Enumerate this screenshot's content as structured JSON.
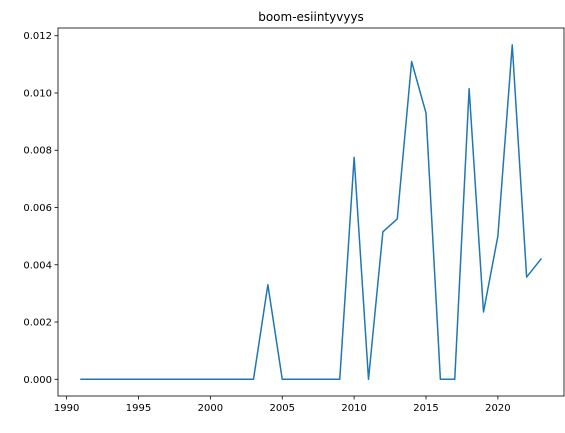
{
  "chart_data": {
    "type": "line",
    "title": "boom-esiintyvyys",
    "xlabel": "",
    "ylabel": "",
    "xlim": [
      1989.4,
      2024.6
    ],
    "ylim": [
      -0.000584,
      0.01227
    ],
    "xticks": [
      1990,
      1995,
      2000,
      2005,
      2010,
      2015,
      2020
    ],
    "yticks": [
      0.0,
      0.002,
      0.004,
      0.006,
      0.008,
      0.01,
      0.012
    ],
    "ytick_labels": [
      "0.000",
      "0.002",
      "0.004",
      "0.006",
      "0.008",
      "0.010",
      "0.012"
    ],
    "grid": false,
    "legend": "none",
    "series": [
      {
        "color": "#1f77b4",
        "x": [
          1991,
          1992,
          1993,
          1994,
          1995,
          1996,
          1997,
          1998,
          1999,
          2000,
          2001,
          2002,
          2003,
          2004,
          2005,
          2006,
          2007,
          2008,
          2009,
          2010,
          2011,
          2012,
          2013,
          2014,
          2015,
          2016,
          2017,
          2018,
          2019,
          2020,
          2021,
          2022,
          2023
        ],
        "y": [
          0,
          0,
          0,
          0,
          0,
          0,
          0,
          0,
          0,
          0,
          0,
          0,
          0,
          0.0033,
          0,
          0,
          0,
          0,
          0,
          0.00775,
          0,
          0.00515,
          0.0056,
          0.0111,
          0.0093,
          0,
          0,
          0.01015,
          0.00235,
          0.005,
          0.01168,
          0.00357,
          0.0042
        ]
      }
    ]
  }
}
